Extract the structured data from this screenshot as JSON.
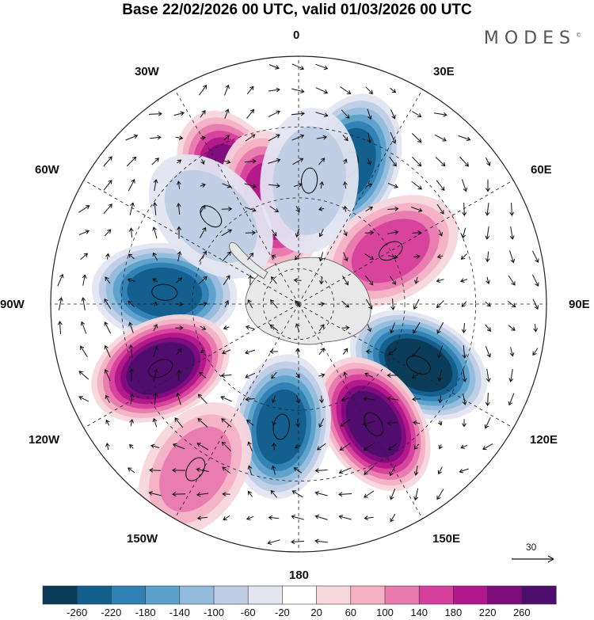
{
  "title": "Base 22/02/2026 00 UTC, valid 01/03/2026 00 UTC",
  "logo": {
    "text": "MODES",
    "mark": "©"
  },
  "longitude_labels": {
    "lon_0": "0",
    "lon_30e": "30E",
    "lon_60e": "60E",
    "lon_90e": "90E",
    "lon_120e": "120E",
    "lon_150e": "150E",
    "lon_180": "180",
    "lon_150w": "150W",
    "lon_120w": "120W",
    "lon_90w": "90W",
    "lon_60w": "60W",
    "lon_30w": "30W"
  },
  "reference_vector": {
    "label": "30"
  },
  "colorbar": {
    "ticks": [
      "-260",
      "-220",
      "-180",
      "-140",
      "-100",
      "-60",
      "-20",
      "20",
      "60",
      "100",
      "140",
      "180",
      "220",
      "260"
    ],
    "colors": [
      "#0b3a57",
      "#125e8c",
      "#2f81b4",
      "#5ba1ca",
      "#93bcdc",
      "#bfcde5",
      "#e3e5f1",
      "#ffffff",
      "#f8d6dd",
      "#f3b1c4",
      "#e97aae",
      "#d7409d",
      "#b1178a",
      "#7e0c7d",
      "#4e0e6e"
    ]
  },
  "anomaly_centers": [
    {
      "id": "a1",
      "value": 240,
      "lon": -28,
      "lat": -50
    },
    {
      "id": "a2",
      "value": 180,
      "lon": -15,
      "lat": -60
    },
    {
      "id": "a3",
      "value": -250,
      "lon": 20,
      "lat": -48
    },
    {
      "id": "a4",
      "value": 170,
      "lon": 60,
      "lat": -60
    },
    {
      "id": "a5",
      "value": -230,
      "lon": -85,
      "lat": -52
    },
    {
      "id": "a6",
      "value": 260,
      "lon": -115,
      "lat": -47
    },
    {
      "id": "a7",
      "value": -260,
      "lon": 117,
      "lat": -52
    },
    {
      "id": "a8",
      "value": 280,
      "lon": 148,
      "lat": -50
    },
    {
      "id": "a9",
      "value": -240,
      "lon": -172,
      "lat": -55
    },
    {
      "id": "a10",
      "value": 110,
      "lon": -148,
      "lat": -35
    },
    {
      "id": "a11",
      "value": -80,
      "lon": -45,
      "lat": -55
    },
    {
      "id": "a12",
      "value": -90,
      "lon": 5,
      "lat": -55
    }
  ]
}
